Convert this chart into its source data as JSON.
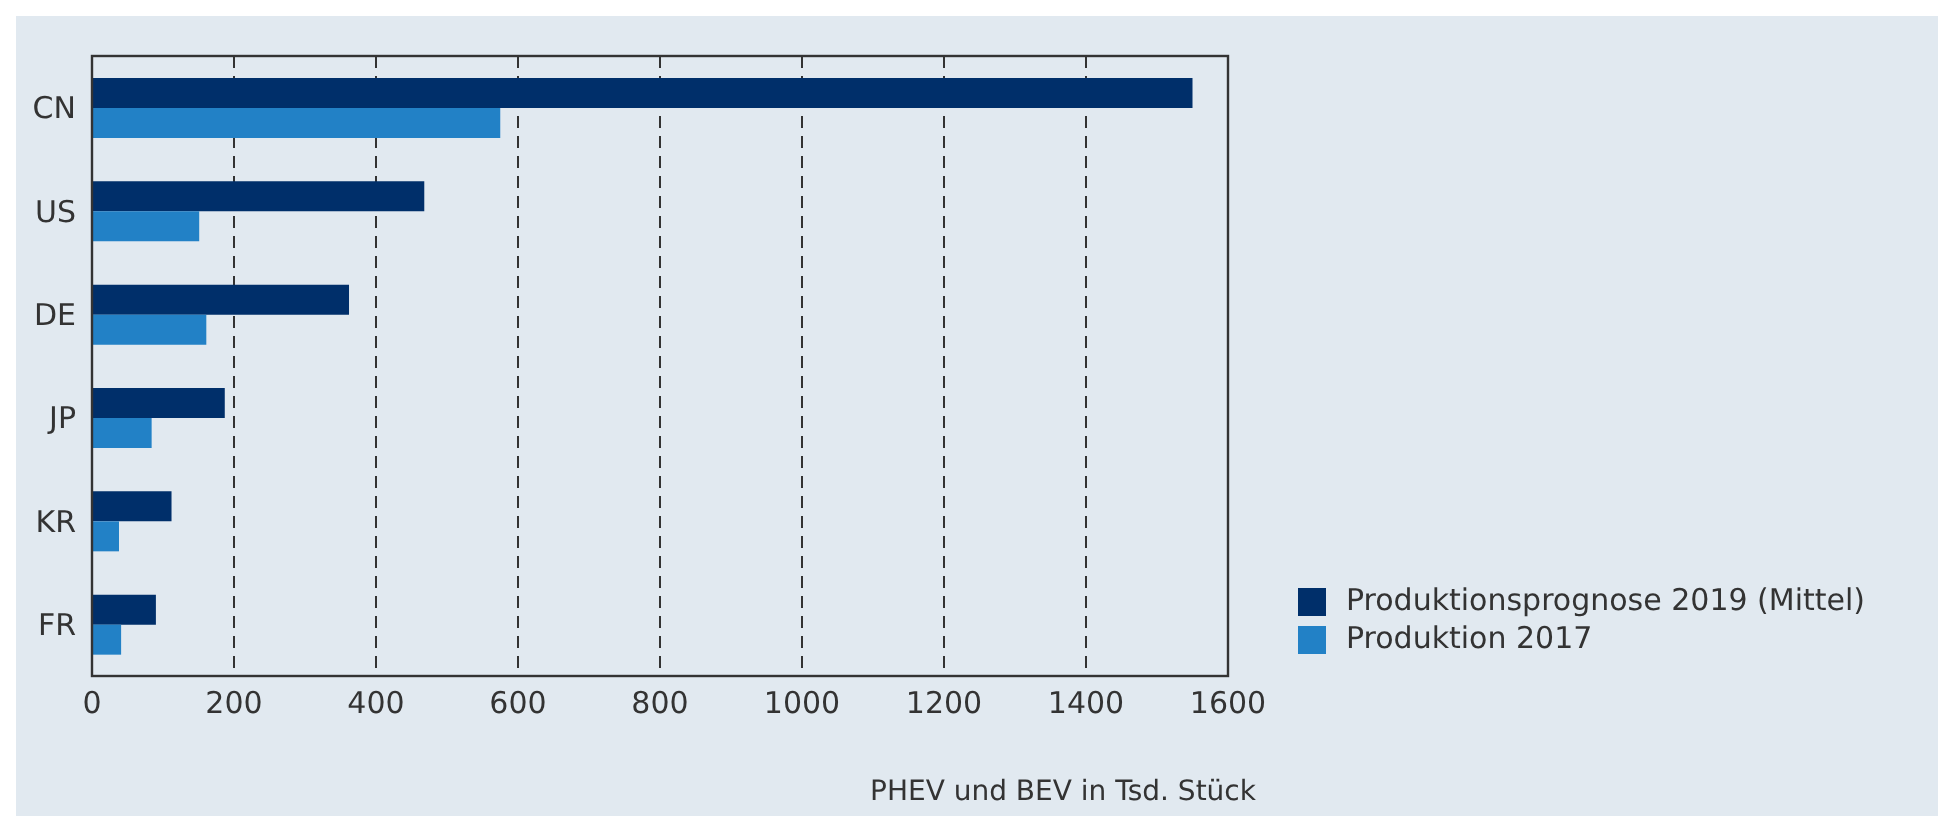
{
  "chart_data": {
    "type": "bar",
    "orientation": "horizontal",
    "xlabel": "PHEV und BEV in Tsd. Stück",
    "categories": [
      "CN",
      "US",
      "DE",
      "JP",
      "KR",
      "FR"
    ],
    "series": [
      {
        "name": "Produktionsprognose 2019 (Mittel)",
        "color": "#002f6a",
        "values": [
          1550,
          468,
          362,
          187,
          112,
          90
        ]
      },
      {
        "name": "Produktion 2017",
        "color": "#2281c6",
        "values": [
          575,
          151,
          161,
          84,
          38,
          41
        ]
      }
    ],
    "xlim": [
      0,
      1600
    ],
    "xticks": [
      0,
      200,
      400,
      600,
      800,
      1000,
      1200,
      1400,
      1600
    ],
    "grid": "x",
    "legend": "right"
  }
}
